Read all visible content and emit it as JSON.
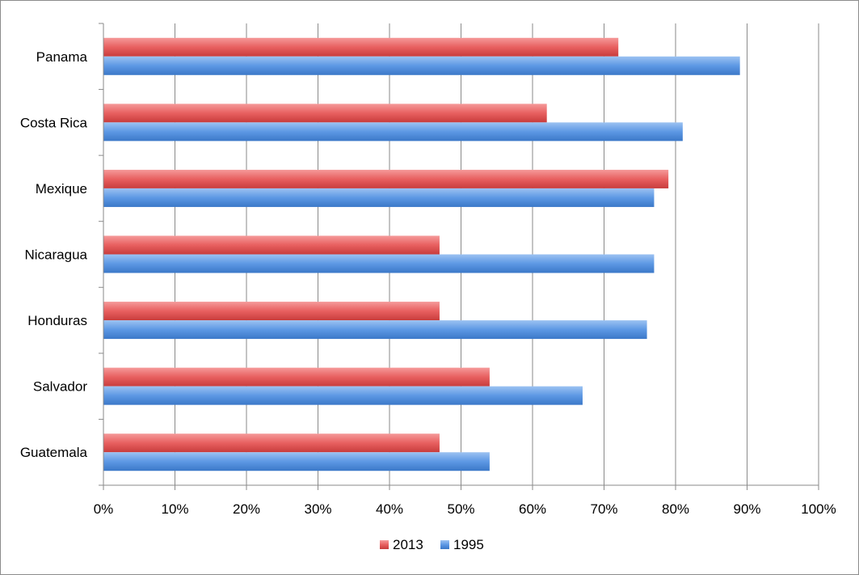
{
  "chart_data": {
    "type": "bar",
    "orientation": "horizontal",
    "title": "",
    "xlabel": "",
    "ylabel": "",
    "categories": [
      "Guatemala",
      "Salvador",
      "Honduras",
      "Nicaragua",
      "Mexique",
      "Costa Rica",
      "Panama"
    ],
    "series": [
      {
        "name": "2013",
        "color": "#e45a5a",
        "values": [
          47,
          54,
          47,
          47,
          79,
          62,
          72
        ]
      },
      {
        "name": "1995",
        "color": "#4f8ee0",
        "values": [
          54,
          67,
          76,
          77,
          77,
          81,
          89
        ]
      }
    ],
    "xlim": [
      0,
      100
    ],
    "x_ticks": [
      "0%",
      "10%",
      "20%",
      "30%",
      "40%",
      "50%",
      "60%",
      "70%",
      "80%",
      "90%",
      "100%"
    ],
    "grid": "vertical",
    "legend": {
      "position": "bottom",
      "entries": [
        "2013",
        "1995"
      ]
    }
  }
}
